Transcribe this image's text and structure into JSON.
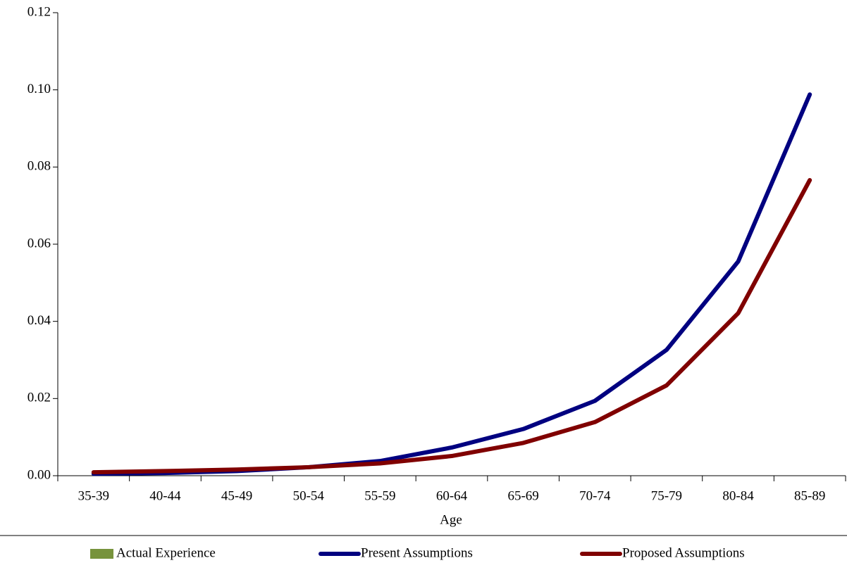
{
  "chart_data": {
    "type": "line",
    "x_label": "Age",
    "categories": [
      "35-39",
      "40-44",
      "45-49",
      "50-54",
      "55-59",
      "60-64",
      "65-69",
      "70-74",
      "75-79",
      "80-84",
      "85-89"
    ],
    "series": [
      {
        "name": "Actual Experience",
        "color": "#77933c",
        "kind": "bar",
        "values": [
          null,
          null,
          null,
          null,
          null,
          null,
          null,
          null,
          null,
          null,
          null
        ]
      },
      {
        "name": "Present Assumptions",
        "color": "#000080",
        "kind": "line",
        "values": [
          0.0005,
          0.0007,
          0.0012,
          0.0022,
          0.0038,
          0.0073,
          0.0121,
          0.0194,
          0.0326,
          0.0555,
          0.0988
        ]
      },
      {
        "name": "Proposed Assumptions",
        "color": "#800000",
        "kind": "line",
        "values": [
          0.0009,
          0.0012,
          0.0016,
          0.0022,
          0.0032,
          0.0051,
          0.0085,
          0.0139,
          0.0234,
          0.0421,
          0.0766
        ]
      }
    ],
    "ylim": [
      0,
      0.12
    ],
    "yticks": [
      {
        "value": 0,
        "label": "0.00"
      },
      0.02,
      0.04,
      0.06,
      0.08,
      {
        "value": 0.1,
        "label": "0.10"
      },
      {
        "value": 0.12,
        "label": "0.12"
      }
    ],
    "grid": false,
    "legend": "bottom"
  }
}
